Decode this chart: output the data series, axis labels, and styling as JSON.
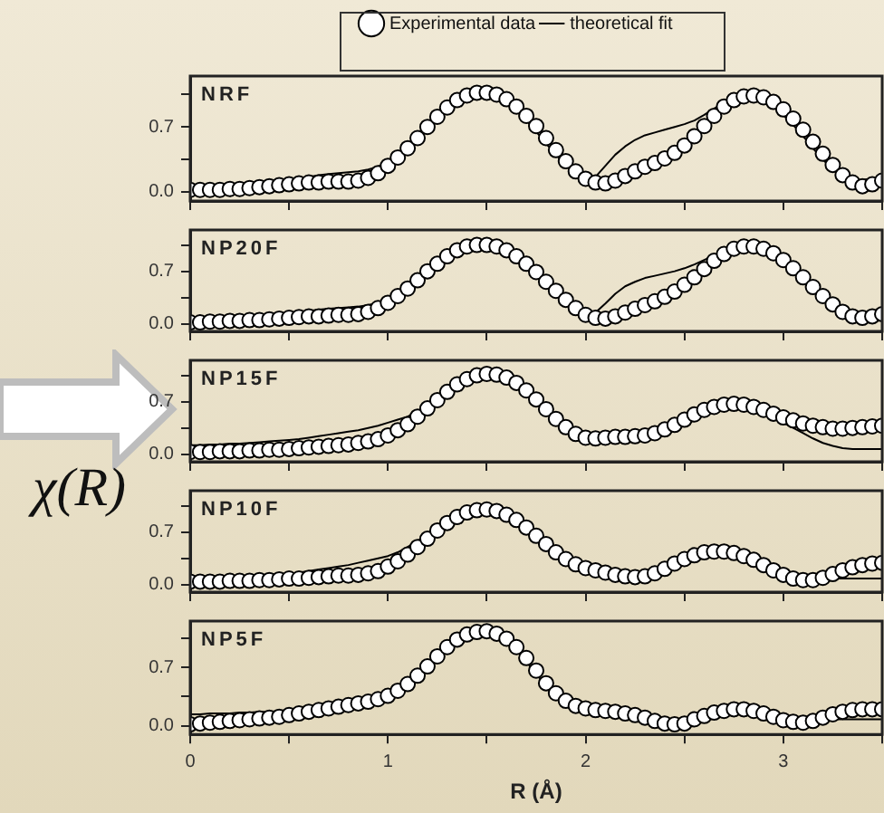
{
  "chart_data": [
    {
      "type": "line",
      "title": "NRF",
      "legend": "top",
      "tick_labels": "y",
      "xlim": [
        0,
        3.5
      ],
      "ylim": [
        -0.1,
        1.25
      ],
      "xticks": [
        0,
        {
          "value": 0.5,
          "label": null
        },
        1,
        {
          "value": 1.5,
          "label": null
        },
        2,
        {
          "value": 2.5,
          "label": null
        },
        3,
        {
          "value": 3.5,
          "label": null
        }
      ],
      "yticks": [
        {
          "value": 0,
          "label": "0.0"
        },
        {
          "value": 0.35,
          "label": null
        },
        {
          "value": 0.7,
          "label": "0.7"
        },
        {
          "value": 1.05,
          "label": null
        }
      ],
      "x": [
        0,
        0.05,
        0.1,
        0.15,
        0.2,
        0.25,
        0.3,
        0.35,
        0.4,
        0.45,
        0.5,
        0.55,
        0.6,
        0.65,
        0.7,
        0.75,
        0.8,
        0.85,
        0.9,
        0.95,
        1,
        1.05,
        1.1,
        1.15,
        1.2,
        1.25,
        1.3,
        1.35,
        1.4,
        1.45,
        1.5,
        1.55,
        1.6,
        1.65,
        1.7,
        1.75,
        1.8,
        1.85,
        1.9,
        1.95,
        2,
        2.05,
        2.1,
        2.15,
        2.2,
        2.25,
        2.3,
        2.35,
        2.4,
        2.45,
        2.5,
        2.55,
        2.6,
        2.65,
        2.7,
        2.75,
        2.8,
        2.85,
        2.9,
        2.95,
        3,
        3.05,
        3.1,
        3.15,
        3.2,
        3.25,
        3.3,
        3.35,
        3.4,
        3.45,
        3.5
      ],
      "series": [
        {
          "name": "Experimental data",
          "type": "scatter",
          "marker": "circle",
          "color": "#000000",
          "values": [
            0.02,
            0.02,
            0.02,
            0.02,
            0.03,
            0.03,
            0.04,
            0.05,
            0.06,
            0.07,
            0.08,
            0.09,
            0.1,
            0.1,
            0.11,
            0.11,
            0.11,
            0.12,
            0.15,
            0.2,
            0.28,
            0.37,
            0.47,
            0.58,
            0.7,
            0.81,
            0.91,
            0.99,
            1.04,
            1.07,
            1.07,
            1.05,
            1.0,
            0.92,
            0.82,
            0.71,
            0.58,
            0.45,
            0.33,
            0.22,
            0.14,
            0.1,
            0.09,
            0.12,
            0.17,
            0.22,
            0.27,
            0.31,
            0.36,
            0.42,
            0.5,
            0.6,
            0.71,
            0.82,
            0.92,
            0.99,
            1.03,
            1.04,
            1.02,
            0.97,
            0.89,
            0.79,
            0.67,
            0.54,
            0.41,
            0.29,
            0.18,
            0.1,
            0.06,
            0.08,
            0.12
          ]
        },
        {
          "name": "theoretical fit",
          "type": "line",
          "color": "#000000",
          "values": [
            0.02,
            0.02,
            0.03,
            0.03,
            0.04,
            0.05,
            0.06,
            0.07,
            0.09,
            0.1,
            0.12,
            0.14,
            0.16,
            0.18,
            0.19,
            0.2,
            0.21,
            0.22,
            0.24,
            0.27,
            0.33,
            0.41,
            0.5,
            0.6,
            0.71,
            0.82,
            0.92,
            1.0,
            1.04,
            1.06,
            1.05,
            1.02,
            0.96,
            0.87,
            0.77,
            0.65,
            0.52,
            0.4,
            0.29,
            0.2,
            0.14,
            0.16,
            0.28,
            0.4,
            0.49,
            0.56,
            0.61,
            0.64,
            0.67,
            0.7,
            0.73,
            0.77,
            0.83,
            0.9,
            0.96,
            1.01,
            1.03,
            1.02,
            0.98,
            0.92,
            0.83,
            0.72,
            0.6,
            0.47,
            0.35,
            0.24,
            0.15,
            0.12,
            0.13,
            0.14,
            0.15
          ]
        }
      ]
    },
    {
      "type": "line",
      "title": "NP20F",
      "tick_labels": "y",
      "xlim": [
        0,
        3.5
      ],
      "ylim": [
        -0.1,
        1.25
      ],
      "xticks": [
        0,
        {
          "value": 0.5,
          "label": null
        },
        1,
        {
          "value": 1.5,
          "label": null
        },
        2,
        {
          "value": 2.5,
          "label": null
        },
        3,
        {
          "value": 3.5,
          "label": null
        }
      ],
      "yticks": [
        {
          "value": 0,
          "label": "0.0"
        },
        {
          "value": 0.35,
          "label": null
        },
        {
          "value": 0.7,
          "label": "0.7"
        },
        {
          "value": 1.05,
          "label": null
        }
      ],
      "x": [
        0,
        0.05,
        0.1,
        0.15,
        0.2,
        0.25,
        0.3,
        0.35,
        0.4,
        0.45,
        0.5,
        0.55,
        0.6,
        0.65,
        0.7,
        0.75,
        0.8,
        0.85,
        0.9,
        0.95,
        1,
        1.05,
        1.1,
        1.15,
        1.2,
        1.25,
        1.3,
        1.35,
        1.4,
        1.45,
        1.5,
        1.55,
        1.6,
        1.65,
        1.7,
        1.75,
        1.8,
        1.85,
        1.9,
        1.95,
        2,
        2.05,
        2.1,
        2.15,
        2.2,
        2.25,
        2.3,
        2.35,
        2.4,
        2.45,
        2.5,
        2.55,
        2.6,
        2.65,
        2.7,
        2.75,
        2.8,
        2.85,
        2.9,
        2.95,
        3,
        3.05,
        3.1,
        3.15,
        3.2,
        3.25,
        3.3,
        3.35,
        3.4,
        3.45,
        3.5
      ],
      "series": [
        {
          "type": "scatter",
          "marker": "circle",
          "color": "#000000",
          "values": [
            0.02,
            0.02,
            0.03,
            0.03,
            0.04,
            0.04,
            0.05,
            0.05,
            0.06,
            0.07,
            0.08,
            0.09,
            0.1,
            0.1,
            0.11,
            0.12,
            0.12,
            0.13,
            0.16,
            0.21,
            0.28,
            0.37,
            0.47,
            0.58,
            0.7,
            0.8,
            0.9,
            0.98,
            1.03,
            1.05,
            1.05,
            1.03,
            0.98,
            0.9,
            0.8,
            0.69,
            0.56,
            0.44,
            0.32,
            0.21,
            0.12,
            0.08,
            0.07,
            0.1,
            0.15,
            0.2,
            0.25,
            0.3,
            0.36,
            0.43,
            0.52,
            0.62,
            0.73,
            0.84,
            0.93,
            1.0,
            1.03,
            1.03,
            1.0,
            0.94,
            0.85,
            0.74,
            0.62,
            0.49,
            0.37,
            0.26,
            0.16,
            0.1,
            0.08,
            0.1,
            0.13
          ]
        },
        {
          "type": "line",
          "color": "#000000",
          "values": [
            0.02,
            0.03,
            0.03,
            0.04,
            0.05,
            0.06,
            0.07,
            0.08,
            0.09,
            0.11,
            0.13,
            0.15,
            0.17,
            0.19,
            0.2,
            0.21,
            0.22,
            0.23,
            0.25,
            0.28,
            0.33,
            0.41,
            0.5,
            0.6,
            0.71,
            0.81,
            0.91,
            0.98,
            1.02,
            1.04,
            1.03,
            1.0,
            0.94,
            0.85,
            0.75,
            0.63,
            0.5,
            0.38,
            0.27,
            0.18,
            0.12,
            0.15,
            0.27,
            0.4,
            0.5,
            0.56,
            0.61,
            0.64,
            0.67,
            0.7,
            0.74,
            0.79,
            0.85,
            0.91,
            0.97,
            1.01,
            1.02,
            1.0,
            0.96,
            0.89,
            0.79,
            0.68,
            0.56,
            0.44,
            0.33,
            0.23,
            0.15,
            0.12,
            0.13,
            0.14,
            0.15
          ]
        }
      ]
    },
    {
      "type": "line",
      "title": "NP15F",
      "ylabel": "χ(R)",
      "tick_labels": "y",
      "xlim": [
        0,
        3.5
      ],
      "ylim": [
        -0.1,
        1.25
      ],
      "xticks": [
        0,
        {
          "value": 0.5,
          "label": null
        },
        1,
        {
          "value": 1.5,
          "label": null
        },
        2,
        {
          "value": 2.5,
          "label": null
        },
        3,
        {
          "value": 3.5,
          "label": null
        }
      ],
      "yticks": [
        {
          "value": 0,
          "label": "0.0"
        },
        {
          "value": 0.35,
          "label": null
        },
        {
          "value": 0.7,
          "label": "0.7"
        },
        {
          "value": 1.05,
          "label": null
        }
      ],
      "x": [
        0,
        0.05,
        0.1,
        0.15,
        0.2,
        0.25,
        0.3,
        0.35,
        0.4,
        0.45,
        0.5,
        0.55,
        0.6,
        0.65,
        0.7,
        0.75,
        0.8,
        0.85,
        0.9,
        0.95,
        1,
        1.05,
        1.1,
        1.15,
        1.2,
        1.25,
        1.3,
        1.35,
        1.4,
        1.45,
        1.5,
        1.55,
        1.6,
        1.65,
        1.7,
        1.75,
        1.8,
        1.85,
        1.9,
        1.95,
        2,
        2.05,
        2.1,
        2.15,
        2.2,
        2.25,
        2.3,
        2.35,
        2.4,
        2.45,
        2.5,
        2.55,
        2.6,
        2.65,
        2.7,
        2.75,
        2.8,
        2.85,
        2.9,
        2.95,
        3,
        3.05,
        3.1,
        3.15,
        3.2,
        3.25,
        3.3,
        3.35,
        3.4,
        3.45,
        3.5
      ],
      "series": [
        {
          "type": "scatter",
          "marker": "circle",
          "color": "#000000",
          "values": [
            0.03,
            0.03,
            0.03,
            0.04,
            0.04,
            0.04,
            0.05,
            0.05,
            0.06,
            0.06,
            0.07,
            0.08,
            0.09,
            0.1,
            0.11,
            0.12,
            0.13,
            0.15,
            0.17,
            0.2,
            0.25,
            0.32,
            0.4,
            0.5,
            0.61,
            0.72,
            0.83,
            0.93,
            1.0,
            1.05,
            1.07,
            1.06,
            1.02,
            0.95,
            0.85,
            0.73,
            0.6,
            0.47,
            0.36,
            0.27,
            0.22,
            0.21,
            0.22,
            0.23,
            0.23,
            0.24,
            0.25,
            0.28,
            0.33,
            0.39,
            0.46,
            0.53,
            0.59,
            0.63,
            0.66,
            0.67,
            0.66,
            0.63,
            0.59,
            0.54,
            0.49,
            0.45,
            0.41,
            0.38,
            0.36,
            0.34,
            0.34,
            0.35,
            0.36,
            0.37,
            0.38
          ]
        },
        {
          "type": "line",
          "color": "#000000",
          "values": [
            0.12,
            0.12,
            0.13,
            0.13,
            0.14,
            0.14,
            0.15,
            0.16,
            0.17,
            0.18,
            0.19,
            0.2,
            0.22,
            0.24,
            0.26,
            0.28,
            0.3,
            0.32,
            0.35,
            0.38,
            0.42,
            0.46,
            0.5,
            0.57,
            0.65,
            0.75,
            0.85,
            0.94,
            1.01,
            1.05,
            1.06,
            1.04,
            0.99,
            0.91,
            0.8,
            0.68,
            0.55,
            0.43,
            0.32,
            0.24,
            0.21,
            0.23,
            0.26,
            0.28,
            0.28,
            0.27,
            0.27,
            0.3,
            0.35,
            0.41,
            0.48,
            0.55,
            0.61,
            0.65,
            0.67,
            0.67,
            0.65,
            0.61,
            0.56,
            0.49,
            0.42,
            0.35,
            0.28,
            0.21,
            0.15,
            0.11,
            0.08,
            0.07,
            0.07,
            0.07,
            0.07
          ]
        }
      ]
    },
    {
      "type": "line",
      "title": "NP10F",
      "tick_labels": "y",
      "xlim": [
        0,
        3.5
      ],
      "ylim": [
        -0.1,
        1.25
      ],
      "xticks": [
        0,
        {
          "value": 0.5,
          "label": null
        },
        1,
        {
          "value": 1.5,
          "label": null
        },
        2,
        {
          "value": 2.5,
          "label": null
        },
        3,
        {
          "value": 3.5,
          "label": null
        }
      ],
      "yticks": [
        {
          "value": 0,
          "label": "0.0"
        },
        {
          "value": 0.35,
          "label": null
        },
        {
          "value": 0.7,
          "label": "0.7"
        },
        {
          "value": 1.05,
          "label": null
        }
      ],
      "x": [
        0,
        0.05,
        0.1,
        0.15,
        0.2,
        0.25,
        0.3,
        0.35,
        0.4,
        0.45,
        0.5,
        0.55,
        0.6,
        0.65,
        0.7,
        0.75,
        0.8,
        0.85,
        0.9,
        0.95,
        1,
        1.05,
        1.1,
        1.15,
        1.2,
        1.25,
        1.3,
        1.35,
        1.4,
        1.45,
        1.5,
        1.55,
        1.6,
        1.65,
        1.7,
        1.75,
        1.8,
        1.85,
        1.9,
        1.95,
        2,
        2.05,
        2.1,
        2.15,
        2.2,
        2.25,
        2.3,
        2.35,
        2.4,
        2.45,
        2.5,
        2.55,
        2.6,
        2.65,
        2.7,
        2.75,
        2.8,
        2.85,
        2.9,
        2.95,
        3,
        3.05,
        3.1,
        3.15,
        3.2,
        3.25,
        3.3,
        3.35,
        3.4,
        3.45,
        3.5
      ],
      "series": [
        {
          "type": "scatter",
          "marker": "circle",
          "color": "#000000",
          "values": [
            0.04,
            0.04,
            0.04,
            0.04,
            0.05,
            0.05,
            0.05,
            0.06,
            0.06,
            0.07,
            0.08,
            0.08,
            0.09,
            0.1,
            0.11,
            0.12,
            0.12,
            0.13,
            0.15,
            0.18,
            0.24,
            0.31,
            0.4,
            0.5,
            0.61,
            0.72,
            0.82,
            0.9,
            0.96,
            0.99,
            1.0,
            0.98,
            0.93,
            0.86,
            0.76,
            0.65,
            0.54,
            0.43,
            0.34,
            0.27,
            0.22,
            0.19,
            0.16,
            0.13,
            0.11,
            0.1,
            0.11,
            0.15,
            0.21,
            0.28,
            0.34,
            0.39,
            0.43,
            0.44,
            0.44,
            0.42,
            0.38,
            0.33,
            0.26,
            0.19,
            0.13,
            0.08,
            0.06,
            0.06,
            0.09,
            0.14,
            0.19,
            0.23,
            0.26,
            0.28,
            0.29
          ]
        },
        {
          "type": "line",
          "color": "#000000",
          "values": [
            0.05,
            0.05,
            0.05,
            0.06,
            0.07,
            0.08,
            0.09,
            0.1,
            0.11,
            0.13,
            0.14,
            0.16,
            0.18,
            0.2,
            0.22,
            0.24,
            0.26,
            0.29,
            0.32,
            0.35,
            0.38,
            0.43,
            0.5,
            0.58,
            0.67,
            0.76,
            0.85,
            0.92,
            0.96,
            0.98,
            0.98,
            0.95,
            0.9,
            0.82,
            0.72,
            0.61,
            0.5,
            0.4,
            0.31,
            0.25,
            0.2,
            0.18,
            0.16,
            0.14,
            0.12,
            0.11,
            0.1,
            0.13,
            0.19,
            0.26,
            0.33,
            0.38,
            0.42,
            0.44,
            0.44,
            0.42,
            0.38,
            0.32,
            0.25,
            0.18,
            0.12,
            0.08,
            0.06,
            0.06,
            0.07,
            0.08,
            0.08,
            0.08,
            0.08,
            0.08,
            0.08
          ]
        }
      ]
    },
    {
      "type": "line",
      "title": "NP5F",
      "xlabel": "R (Å)",
      "xlim": [
        0,
        3.5
      ],
      "ylim": [
        -0.1,
        1.25
      ],
      "xticks": [
        0,
        {
          "value": 0.5,
          "label": null
        },
        1,
        {
          "value": 1.5,
          "label": null
        },
        2,
        {
          "value": 2.5,
          "label": null
        },
        3,
        {
          "value": 3.5,
          "label": null
        }
      ],
      "yticks": [
        {
          "value": 0,
          "label": "0.0"
        },
        {
          "value": 0.35,
          "label": null
        },
        {
          "value": 0.7,
          "label": "0.7"
        },
        {
          "value": 1.05,
          "label": null
        }
      ],
      "x": [
        0,
        0.05,
        0.1,
        0.15,
        0.2,
        0.25,
        0.3,
        0.35,
        0.4,
        0.45,
        0.5,
        0.55,
        0.6,
        0.65,
        0.7,
        0.75,
        0.8,
        0.85,
        0.9,
        0.95,
        1,
        1.05,
        1.1,
        1.15,
        1.2,
        1.25,
        1.3,
        1.35,
        1.4,
        1.45,
        1.5,
        1.55,
        1.6,
        1.65,
        1.7,
        1.75,
        1.8,
        1.85,
        1.9,
        1.95,
        2,
        2.05,
        2.1,
        2.15,
        2.2,
        2.25,
        2.3,
        2.35,
        2.4,
        2.45,
        2.5,
        2.55,
        2.6,
        2.65,
        2.7,
        2.75,
        2.8,
        2.85,
        2.9,
        2.95,
        3,
        3.05,
        3.1,
        3.15,
        3.2,
        3.25,
        3.3,
        3.35,
        3.4,
        3.45,
        3.5
      ],
      "series": [
        {
          "type": "scatter",
          "marker": "circle",
          "color": "#000000",
          "values": [
            0.02,
            0.03,
            0.04,
            0.05,
            0.06,
            0.07,
            0.08,
            0.09,
            0.1,
            0.11,
            0.13,
            0.15,
            0.17,
            0.19,
            0.21,
            0.23,
            0.25,
            0.27,
            0.29,
            0.32,
            0.36,
            0.42,
            0.5,
            0.6,
            0.71,
            0.83,
            0.94,
            1.03,
            1.09,
            1.12,
            1.13,
            1.1,
            1.04,
            0.94,
            0.81,
            0.66,
            0.51,
            0.39,
            0.3,
            0.24,
            0.21,
            0.19,
            0.18,
            0.17,
            0.15,
            0.13,
            0.1,
            0.06,
            0.03,
            0.02,
            0.03,
            0.08,
            0.12,
            0.16,
            0.18,
            0.2,
            0.2,
            0.18,
            0.15,
            0.11,
            0.07,
            0.05,
            0.04,
            0.06,
            0.1,
            0.14,
            0.17,
            0.19,
            0.2,
            0.2,
            0.2
          ]
        },
        {
          "type": "line",
          "color": "#000000",
          "values": [
            0.14,
            0.14,
            0.15,
            0.15,
            0.15,
            0.16,
            0.16,
            0.17,
            0.17,
            0.18,
            0.19,
            0.2,
            0.22,
            0.24,
            0.27,
            0.29,
            0.3,
            0.32,
            0.34,
            0.36,
            0.39,
            0.45,
            0.53,
            0.63,
            0.74,
            0.85,
            0.96,
            1.04,
            1.09,
            1.11,
            1.11,
            1.07,
            1.0,
            0.9,
            0.77,
            0.62,
            0.48,
            0.37,
            0.29,
            0.24,
            0.22,
            0.2,
            0.19,
            0.18,
            0.17,
            0.15,
            0.13,
            0.1,
            0.06,
            0.05,
            0.07,
            0.11,
            0.15,
            0.18,
            0.19,
            0.2,
            0.19,
            0.17,
            0.14,
            0.11,
            0.08,
            0.06,
            0.06,
            0.07,
            0.08,
            0.08,
            0.08,
            0.08,
            0.08,
            0.08,
            0.08
          ]
        }
      ]
    }
  ]
}
